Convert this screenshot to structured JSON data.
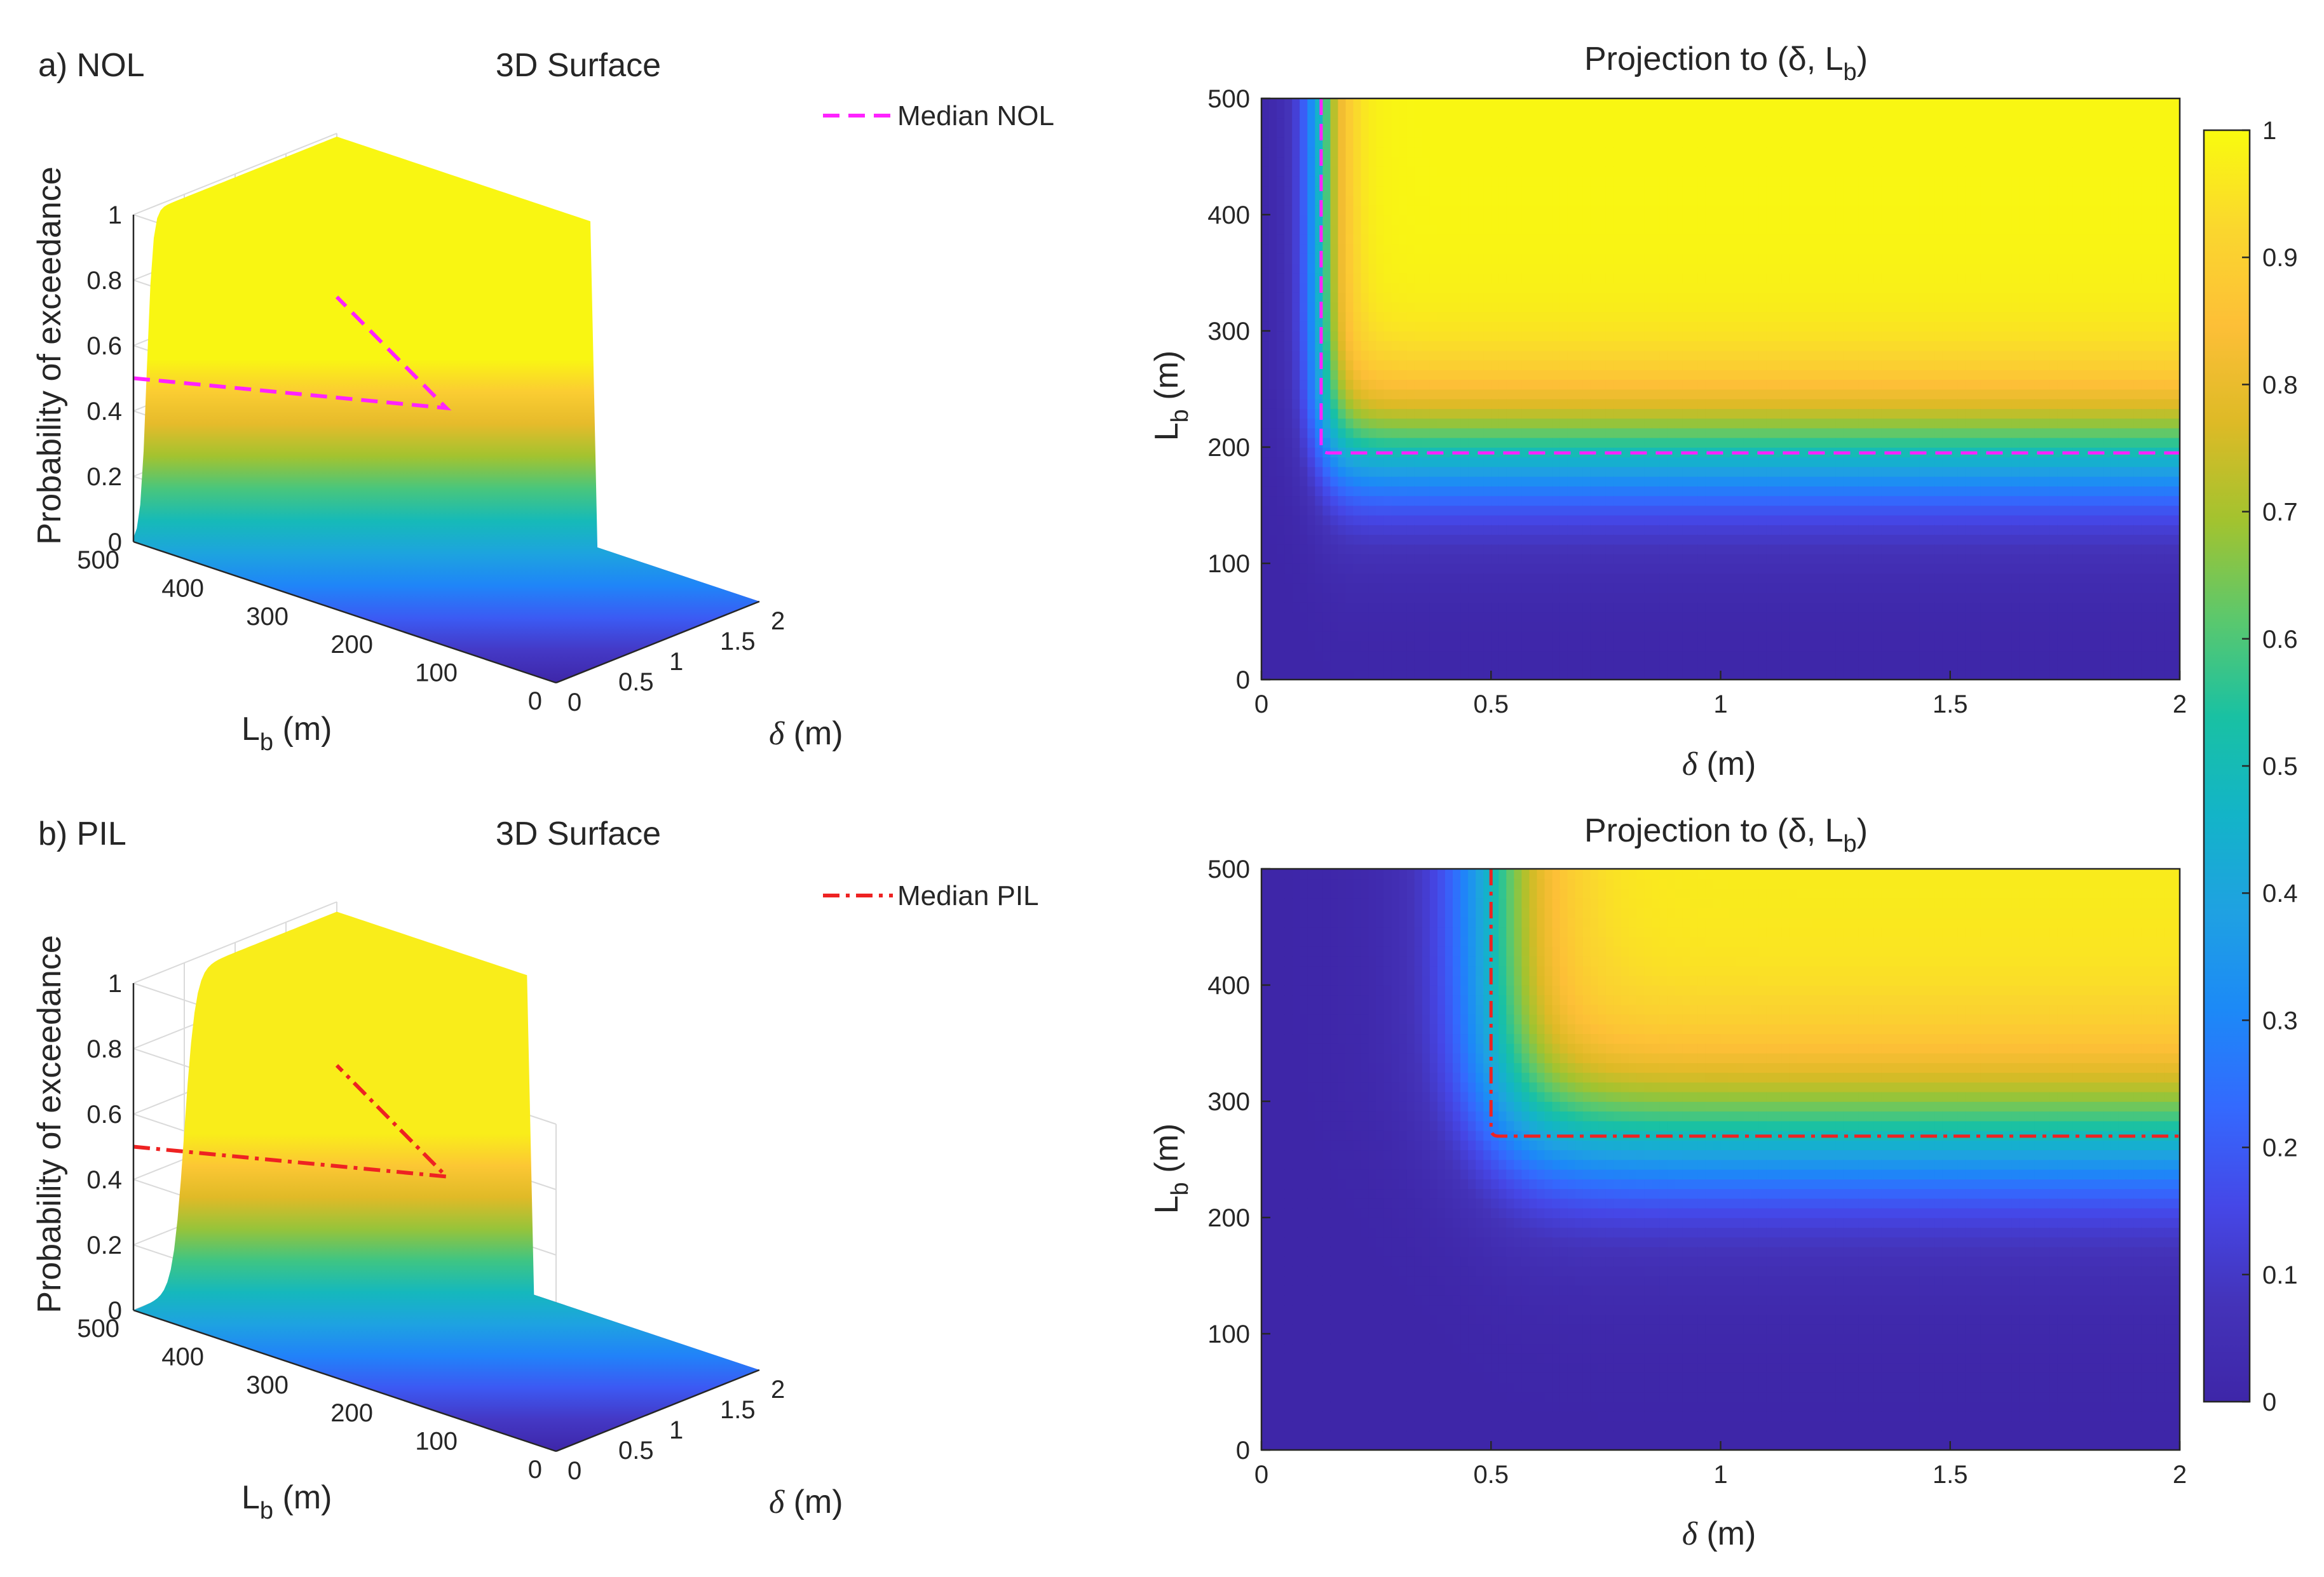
{
  "colors": {
    "colormap": [
      "#3e26a8",
      "#4433b9",
      "#4547e7",
      "#3469fe",
      "#1c89f7",
      "#1fa1e2",
      "#13b4c8",
      "#19c1a3",
      "#5bc86d",
      "#a2c32f",
      "#ddba26",
      "#fdbf37",
      "#fad72e",
      "#f9fb0e"
    ],
    "median_nol": "#ff22ff",
    "median_pil": "#ee2222"
  },
  "chart_data": [
    {
      "type": "surface",
      "panel_label": "a) NOL",
      "title": "3D Surface",
      "xlabel_symbol": "δ",
      "xlabel_unit": " (m)",
      "ylabel_main": "L",
      "ylabel_sub": "b",
      "ylabel_unit": " (m)",
      "zlabel": "Probability of exceedance",
      "x_ticks": [
        "0",
        "0.5",
        "1",
        "1.5",
        "2"
      ],
      "y_ticks": [
        "0",
        "100",
        "200",
        "300",
        "400",
        "500"
      ],
      "z_ticks": [
        "0",
        "0.2",
        "0.4",
        "0.6",
        "0.8",
        "1"
      ],
      "xlim": [
        0,
        2
      ],
      "ylim": [
        0,
        500
      ],
      "zlim": [
        0,
        1
      ],
      "grid": true,
      "legend": {
        "label": "Median NOL",
        "style": "dashed",
        "placement": "top-right"
      },
      "model": {
        "x_median_m": 0.13,
        "y_median_m": 195,
        "z_max": 0.99
      }
    },
    {
      "type": "heatmap",
      "title": "Projection to (δ, L",
      "title_sub": "b",
      "title_close": ")",
      "xlabel_symbol": "δ",
      "xlabel_unit": " (m)",
      "ylabel_main": "L",
      "ylabel_sub": "b",
      "ylabel_unit": " (m)",
      "x_ticks": [
        "0",
        "0.5",
        "1",
        "1.5",
        "2"
      ],
      "y_ticks": [
        "0",
        "100",
        "200",
        "300",
        "400",
        "500"
      ],
      "xlim": [
        0,
        2
      ],
      "ylim": [
        0,
        500
      ],
      "median_contour": {
        "x_m": 0.13,
        "y_m": 195,
        "style": "dashed"
      }
    },
    {
      "type": "surface",
      "panel_label": "b) PIL",
      "title": "3D Surface",
      "xlabel_symbol": "δ",
      "xlabel_unit": " (m)",
      "ylabel_main": "L",
      "ylabel_sub": "b",
      "ylabel_unit": " (m)",
      "zlabel": "Probability of exceedance",
      "x_ticks": [
        "0",
        "0.5",
        "1",
        "1.5",
        "2"
      ],
      "y_ticks": [
        "0",
        "100",
        "200",
        "300",
        "400",
        "500"
      ],
      "z_ticks": [
        "0",
        "0.2",
        "0.4",
        "0.6",
        "0.8",
        "1"
      ],
      "xlim": [
        0,
        2
      ],
      "ylim": [
        0,
        500
      ],
      "zlim": [
        0,
        1
      ],
      "grid": true,
      "legend": {
        "label": "Median PIL",
        "style": "dash-dot",
        "placement": "top-right"
      },
      "model": {
        "x_median_m": 0.5,
        "y_median_m": 270,
        "z_max": 0.97
      }
    },
    {
      "type": "heatmap",
      "title": "Projection to (δ, L",
      "title_sub": "b",
      "title_close": ")",
      "xlabel_symbol": "δ",
      "xlabel_unit": " (m)",
      "ylabel_main": "L",
      "ylabel_sub": "b",
      "ylabel_unit": " (m)",
      "x_ticks": [
        "0",
        "0.5",
        "1",
        "1.5",
        "2"
      ],
      "y_ticks": [
        "0",
        "100",
        "200",
        "300",
        "400",
        "500"
      ],
      "xlim": [
        0,
        2
      ],
      "ylim": [
        0,
        500
      ],
      "median_contour": {
        "x_m": 0.5,
        "y_m": 270,
        "style": "dash-dot"
      }
    }
  ],
  "colorbar": {
    "ticks": [
      "0",
      "0.1",
      "0.2",
      "0.3",
      "0.4",
      "0.5",
      "0.6",
      "0.7",
      "0.8",
      "0.9",
      "1"
    ],
    "range": [
      0,
      1
    ]
  }
}
